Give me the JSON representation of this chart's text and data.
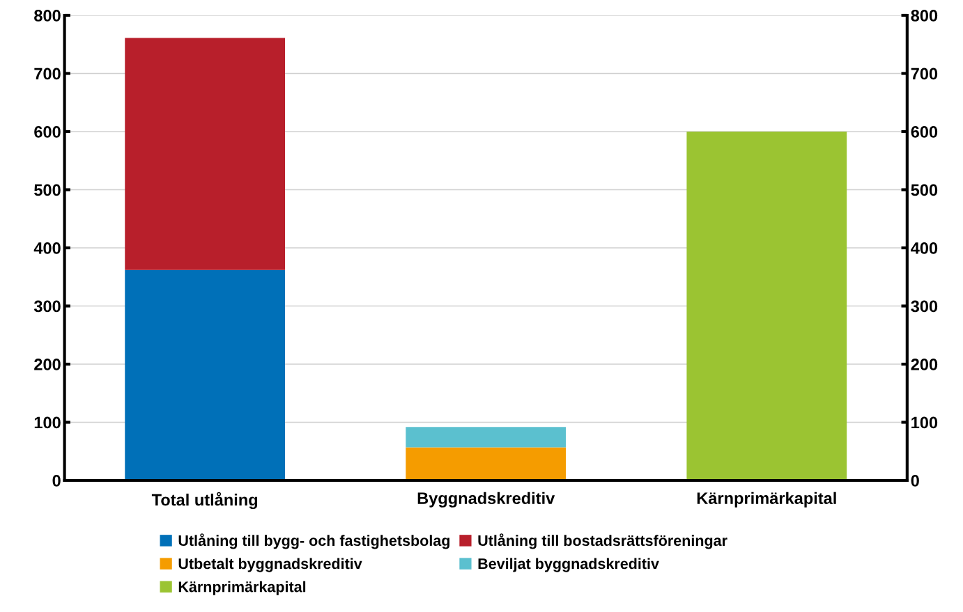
{
  "chart_data": {
    "type": "bar",
    "stacked": true,
    "categories": [
      "Total utlåning",
      "Byggnadskreditiv",
      "Kärnprimärkapital"
    ],
    "series": [
      {
        "name": "Utlåning till bygg- och fastighetsbolag",
        "color": "#0070b8",
        "values": [
          362,
          null,
          null
        ]
      },
      {
        "name": "Utlåning till bostadsrättsföreningar",
        "color": "#b81f2b",
        "values": [
          399,
          null,
          null
        ]
      },
      {
        "name": "Utbetalt byggnadskreditiv",
        "color": "#f59c00",
        "values": [
          null,
          57,
          null
        ]
      },
      {
        "name": "Beviljat byggnadskreditiv",
        "color": "#5bc0cf",
        "values": [
          null,
          35,
          null
        ]
      },
      {
        "name": "Kärnprimärkapital",
        "color": "#9bc432",
        "values": [
          null,
          null,
          600
        ]
      }
    ],
    "ylim": [
      0,
      800
    ],
    "yticks": [
      0,
      100,
      200,
      300,
      400,
      500,
      600,
      700,
      800
    ],
    "y2lim": [
      0,
      800
    ],
    "y2ticks": [
      0,
      100,
      200,
      300,
      400,
      500,
      600,
      700,
      800
    ],
    "grid": true,
    "legend": "bottom"
  }
}
